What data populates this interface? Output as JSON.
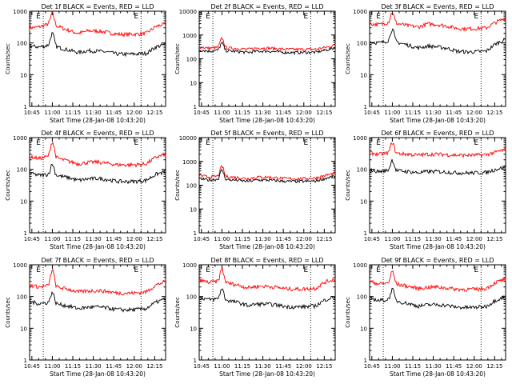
{
  "chart_data": [
    {
      "type": "line",
      "title": "Det 1f BLACK = Events, RED = LLD",
      "xlabel": "Start Time (28-Jan-08 10:43:20)",
      "ylabel": "Counts/sec",
      "log_y": true,
      "ylim": [
        1,
        1000
      ],
      "yticks": [
        "1",
        "10",
        "100",
        "1000"
      ],
      "xlim": [
        "10:43:20",
        "12:23:00"
      ],
      "xticks": [
        "10:45",
        "11:00",
        "11:15",
        "11:30",
        "11:45",
        "12:00",
        "12:15"
      ],
      "markers": [
        {
          "label": "E",
          "x": "10:53:20"
        },
        {
          "label": "E",
          "x": "12:05:00"
        }
      ],
      "spike_x": "11:00",
      "series": [
        {
          "color": "#ff0000",
          "values": [
            300,
            320,
            400,
            800,
            250,
            200,
            240,
            240,
            215,
            190,
            185,
            190,
            200,
            330,
            400
          ]
        },
        {
          "color": "#000000",
          "values": [
            80,
            75,
            85,
            190,
            60,
            50,
            57,
            55,
            52,
            45,
            44,
            45,
            47,
            75,
            90
          ]
        }
      ]
    },
    {
      "type": "line",
      "title": "Det 2f BLACK = Events, RED = LLD",
      "xlabel": "Start Time (28-Jan-08 10:43:20)",
      "ylabel": "Counts/sec",
      "log_y": true,
      "ylim": [
        1,
        10000
      ],
      "yticks": [
        "1",
        "10",
        "100",
        "1000",
        "10000"
      ],
      "xlim": [
        "10:43:20",
        "12:23:00"
      ],
      "xticks": [
        "10:45",
        "11:00",
        "11:15",
        "11:30",
        "11:45",
        "12:00",
        "12:15"
      ],
      "markers": [
        {
          "label": "E",
          "x": "10:53:20"
        },
        {
          "label": "E",
          "x": "12:05:00"
        }
      ],
      "spike_x": "11:00",
      "series": [
        {
          "color": "#ff0000",
          "values": [
            320,
            280,
            300,
            700,
            270,
            250,
            285,
            285,
            265,
            250,
            248,
            250,
            255,
            300,
            380
          ]
        },
        {
          "color": "#000000",
          "values": [
            240,
            210,
            230,
            450,
            200,
            185,
            210,
            210,
            195,
            185,
            183,
            185,
            190,
            230,
            290
          ]
        }
      ]
    },
    {
      "type": "line",
      "title": "Det 3f BLACK = Events, RED = LLD",
      "xlabel": "Start Time (28-Jan-08 10:43:20)",
      "ylabel": "Counts/sec",
      "log_y": true,
      "ylim": [
        1,
        1000
      ],
      "yticks": [
        "1",
        "10",
        "100",
        "1000"
      ],
      "xlim": [
        "10:43:20",
        "12:23:00"
      ],
      "xticks": [
        "10:45",
        "11:00",
        "11:15",
        "11:30",
        "11:45",
        "12:00",
        "12:15"
      ],
      "markers": [
        {
          "label": "E",
          "x": "10:53:20"
        },
        {
          "label": "E",
          "x": "12:05:00"
        }
      ],
      "spike_x": "11:00",
      "series": [
        {
          "color": "#ff0000",
          "values": [
            400,
            380,
            450,
            900,
            350,
            320,
            400,
            380,
            340,
            290,
            280,
            285,
            300,
            450,
            600
          ]
        },
        {
          "color": "#000000",
          "values": [
            110,
            100,
            120,
            260,
            85,
            70,
            80,
            75,
            68,
            55,
            52,
            53,
            55,
            95,
            130
          ]
        }
      ]
    },
    {
      "type": "line",
      "title": "Det 4f BLACK = Events, RED = LLD",
      "xlabel": "Start Time (28-Jan-08 10:43:20)",
      "ylabel": "Counts/sec",
      "log_y": true,
      "ylim": [
        1,
        1000
      ],
      "yticks": [
        "1",
        "10",
        "100",
        "1000"
      ],
      "xlim": [
        "10:43:20",
        "12:23:00"
      ],
      "xticks": [
        "10:45",
        "11:00",
        "11:15",
        "11:30",
        "11:45",
        "12:00",
        "12:15"
      ],
      "markers": [
        {
          "label": "E",
          "x": "10:53:20"
        },
        {
          "label": "E",
          "x": "12:05:00"
        }
      ],
      "spike_x": "11:00",
      "series": [
        {
          "color": "#ff0000",
          "values": [
            250,
            220,
            260,
            700,
            180,
            150,
            165,
            170,
            155,
            140,
            138,
            140,
            150,
            240,
            300
          ]
        },
        {
          "color": "#000000",
          "values": [
            75,
            65,
            70,
            140,
            55,
            45,
            50,
            52,
            48,
            42,
            41,
            42,
            45,
            70,
            85
          ]
        }
      ]
    },
    {
      "type": "line",
      "title": "Det 5f BLACK = Events, RED = LLD",
      "xlabel": "Start Time (28-Jan-08 10:43:20)",
      "ylabel": "Counts/sec",
      "log_y": true,
      "ylim": [
        1,
        10000
      ],
      "yticks": [
        "1",
        "10",
        "100",
        "1000",
        "10000"
      ],
      "xlim": [
        "10:43:20",
        "12:23:00"
      ],
      "xticks": [
        "10:45",
        "11:00",
        "11:15",
        "11:30",
        "11:45",
        "12:00",
        "12:15"
      ],
      "markers": [
        {
          "label": "E",
          "x": "10:53:20"
        },
        {
          "label": "E",
          "x": "12:05:00"
        }
      ],
      "spike_x": "11:00",
      "series": [
        {
          "color": "#ff0000",
          "values": [
            260,
            220,
            240,
            600,
            210,
            190,
            220,
            220,
            205,
            190,
            188,
            190,
            200,
            260,
            320
          ]
        },
        {
          "color": "#000000",
          "values": [
            190,
            165,
            180,
            420,
            160,
            145,
            165,
            165,
            155,
            145,
            143,
            145,
            150,
            195,
            240
          ]
        }
      ]
    },
    {
      "type": "line",
      "title": "Det 6f BLACK = Events, RED = LLD",
      "xlabel": "Start Time (28-Jan-08 10:43:20)",
      "ylabel": "Counts/sec",
      "log_y": true,
      "ylim": [
        1,
        1000
      ],
      "yticks": [
        "1",
        "10",
        "100",
        "1000"
      ],
      "xlim": [
        "10:43:20",
        "12:23:00"
      ],
      "xticks": [
        "10:45",
        "11:00",
        "11:15",
        "11:30",
        "11:45",
        "12:00",
        "12:15"
      ],
      "markers": [
        {
          "label": "E",
          "x": "10:53:20"
        },
        {
          "label": "E",
          "x": "12:05:00"
        }
      ],
      "spike_x": "11:00",
      "series": [
        {
          "color": "#ff0000",
          "values": [
            330,
            300,
            330,
            700,
            300,
            280,
            300,
            300,
            290,
            280,
            278,
            280,
            290,
            350,
            420
          ]
        },
        {
          "color": "#000000",
          "values": [
            95,
            85,
            95,
            190,
            85,
            78,
            85,
            85,
            82,
            78,
            77,
            78,
            80,
            100,
            120
          ]
        }
      ]
    },
    {
      "type": "line",
      "title": "Det 7f BLACK = Events, RED = LLD",
      "xlabel": "Start Time (28-Jan-08 10:43:20)",
      "ylabel": "Counts/sec",
      "log_y": true,
      "ylim": [
        1,
        1000
      ],
      "yticks": [
        "1",
        "10",
        "100",
        "1000"
      ],
      "xlim": [
        "10:43:20",
        "12:23:00"
      ],
      "xticks": [
        "10:45",
        "11:00",
        "11:15",
        "11:30",
        "11:45",
        "12:00",
        "12:15"
      ],
      "markers": [
        {
          "label": "E",
          "x": "10:53:20"
        },
        {
          "label": "E",
          "x": "12:05:00"
        }
      ],
      "spike_x": "11:00",
      "series": [
        {
          "color": "#ff0000",
          "values": [
            230,
            200,
            220,
            650,
            170,
            140,
            150,
            155,
            145,
            130,
            128,
            130,
            140,
            230,
            300
          ]
        },
        {
          "color": "#000000",
          "values": [
            70,
            60,
            65,
            130,
            50,
            42,
            46,
            47,
            44,
            39,
            38,
            39,
            42,
            66,
            85
          ]
        }
      ]
    },
    {
      "type": "line",
      "title": "Det 8f BLACK = Events, RED = LLD",
      "xlabel": "Start Time (28-Jan-08 10:43:20)",
      "ylabel": "Counts/sec",
      "log_y": true,
      "ylim": [
        1,
        1000
      ],
      "yticks": [
        "1",
        "10",
        "100",
        "1000"
      ],
      "xlim": [
        "10:43:20",
        "12:23:00"
      ],
      "xticks": [
        "10:45",
        "11:00",
        "11:15",
        "11:30",
        "11:45",
        "12:00",
        "12:15"
      ],
      "markers": [
        {
          "label": "E",
          "x": "10:53:20"
        },
        {
          "label": "E",
          "x": "12:05:00"
        }
      ],
      "spike_x": "11:00",
      "series": [
        {
          "color": "#ff0000",
          "values": [
            330,
            280,
            300,
            700,
            230,
            190,
            210,
            210,
            195,
            175,
            172,
            175,
            185,
            290,
            360
          ]
        },
        {
          "color": "#000000",
          "values": [
            95,
            80,
            85,
            170,
            65,
            52,
            58,
            58,
            54,
            48,
            47,
            48,
            51,
            80,
            100
          ]
        }
      ]
    },
    {
      "type": "line",
      "title": "Det 9f BLACK = Events, RED = LLD",
      "xlabel": "Start Time (28-Jan-08 10:43:20)",
      "ylabel": "Counts/sec",
      "log_y": true,
      "ylim": [
        1,
        1000
      ],
      "yticks": [
        "1",
        "10",
        "100",
        "1000"
      ],
      "xlim": [
        "10:43:20",
        "12:23:00"
      ],
      "xticks": [
        "10:45",
        "11:00",
        "11:15",
        "11:30",
        "11:45",
        "12:00",
        "12:15"
      ],
      "markers": [
        {
          "label": "E",
          "x": "10:53:20"
        },
        {
          "label": "E",
          "x": "12:05:00"
        }
      ],
      "spike_x": "11:00",
      "series": [
        {
          "color": "#ff0000",
          "values": [
            300,
            250,
            270,
            600,
            210,
            180,
            195,
            200,
            185,
            170,
            168,
            170,
            180,
            280,
            360
          ]
        },
        {
          "color": "#000000",
          "values": [
            90,
            75,
            80,
            160,
            60,
            50,
            55,
            56,
            52,
            46,
            45,
            46,
            49,
            78,
            100
          ]
        }
      ]
    }
  ]
}
